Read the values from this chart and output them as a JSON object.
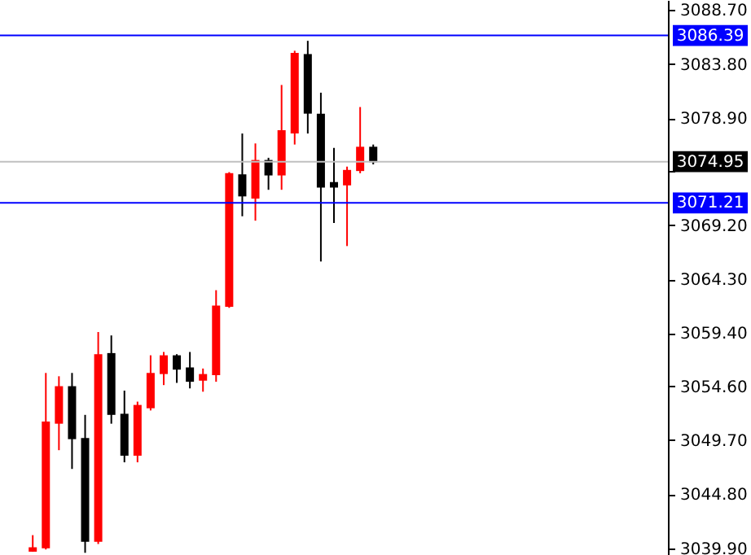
{
  "chart_data": {
    "type": "candlestick",
    "categories": [
      null,
      null,
      null,
      null,
      null,
      null,
      null,
      null,
      null,
      null,
      null,
      null,
      null,
      null,
      null,
      null,
      null,
      null,
      null,
      null,
      null,
      null,
      null,
      null,
      null,
      null,
      null,
      null,
      null,
      null,
      null,
      null,
      null,
      null,
      null,
      null,
      null,
      null,
      null,
      null,
      null,
      null,
      null,
      null,
      null,
      null,
      null,
      null,
      null,
      null,
      null
    ],
    "ohlc": [
      null,
      null,
      [
        3039.6,
        3041.1,
        3039.6,
        3040.0
      ],
      [
        3039.9,
        3055.8,
        3039.8,
        3051.4
      ],
      [
        3051.2,
        3055.5,
        3048.8,
        3054.6
      ],
      [
        3054.6,
        3055.8,
        3047.1,
        3049.8
      ],
      [
        3049.9,
        3052.0,
        3039.5,
        3040.5
      ],
      [
        3040.5,
        3059.5,
        3040.3,
        3057.5
      ],
      [
        3057.6,
        3059.2,
        3051.2,
        3052.0
      ],
      [
        3052.1,
        3054.2,
        3047.7,
        3048.3
      ],
      [
        3048.3,
        3053.2,
        3047.7,
        3052.9
      ],
      [
        3052.6,
        3057.4,
        3052.4,
        3055.8
      ],
      [
        3055.7,
        3057.7,
        3054.7,
        3057.4
      ],
      [
        3057.4,
        3057.5,
        3054.9,
        3056.1
      ],
      [
        3056.3,
        3057.7,
        3054.4,
        3055.0
      ],
      [
        3055.1,
        3056.2,
        3054.1,
        3055.7
      ],
      [
        3055.6,
        3063.3,
        3055.0,
        3061.9
      ],
      [
        3061.8,
        3074.0,
        3061.7,
        3073.9
      ],
      [
        3073.8,
        3077.5,
        3070.0,
        3071.8
      ],
      [
        3071.6,
        3076.6,
        3069.6,
        3075.1
      ],
      [
        3075.1,
        3075.3,
        3072.4,
        3073.7
      ],
      [
        3073.7,
        3081.9,
        3072.4,
        3077.8
      ],
      [
        3077.5,
        3085.0,
        3076.5,
        3084.8
      ],
      [
        3084.7,
        3085.9,
        3077.5,
        3079.3
      ],
      [
        3079.3,
        3081.2,
        3065.9,
        3072.6
      ],
      [
        3073.1,
        3076.2,
        3069.4,
        3072.6
      ],
      [
        3072.8,
        3074.5,
        3067.3,
        3074.2
      ],
      [
        3074.1,
        3079.9,
        3073.9,
        3076.3
      ],
      [
        3076.3,
        3076.5,
        3074.7,
        3074.9
      ],
      null,
      null,
      null,
      null,
      null,
      null,
      null,
      null,
      null,
      null,
      null,
      null,
      null,
      null,
      null,
      null,
      null,
      null,
      null,
      null,
      null,
      null
    ],
    "colors": [
      null,
      null,
      "#ff0000",
      "#ff0000",
      "#ff0000",
      "#000000",
      "#000000",
      "#ff0000",
      "#000000",
      "#000000",
      "#ff0000",
      "#ff0000",
      "#ff0000",
      "#000000",
      "#000000",
      "#ff0000",
      "#ff0000",
      "#ff0000",
      "#000000",
      "#ff0000",
      "#000000",
      "#ff0000",
      "#ff0000",
      "#000000",
      "#000000",
      "#000000",
      "#ff0000",
      "#ff0000",
      "#000000",
      null,
      null,
      null,
      null,
      null,
      null,
      null,
      null,
      null,
      null,
      null,
      null,
      null,
      null,
      null,
      null,
      null,
      null,
      null,
      null,
      null,
      null
    ],
    "ylim": [
      3039.3,
      3089.6
    ],
    "yticks": [
      {
        "value": 3088.7,
        "label": "3088.70"
      },
      {
        "value": 3083.8,
        "label": "3083.80"
      },
      {
        "value": 3078.9,
        "label": "3078.90"
      },
      {
        "value": 3074.1,
        "label": null
      },
      {
        "value": 3069.2,
        "label": "3069.20"
      },
      {
        "value": 3064.3,
        "label": "3064.30"
      },
      {
        "value": 3059.4,
        "label": "3059.40"
      },
      {
        "value": 3054.6,
        "label": "3054.60"
      },
      {
        "value": 3049.7,
        "label": "3049.70"
      },
      {
        "value": 3044.8,
        "label": "3044.80"
      },
      {
        "value": 3039.9,
        "label": "3039.90"
      }
    ],
    "ref_lines": [
      {
        "axis": "y",
        "value": 3086.39,
        "label": "3086.39",
        "color": "#0000ff"
      },
      {
        "axis": "y",
        "value": 3071.21,
        "label": "3071.21",
        "color": "#0000ff"
      },
      {
        "axis": "y",
        "value": 3074.95,
        "label": "3074.95",
        "color": "#c0c0c0"
      }
    ],
    "tick_labels": "y",
    "grid": false
  }
}
